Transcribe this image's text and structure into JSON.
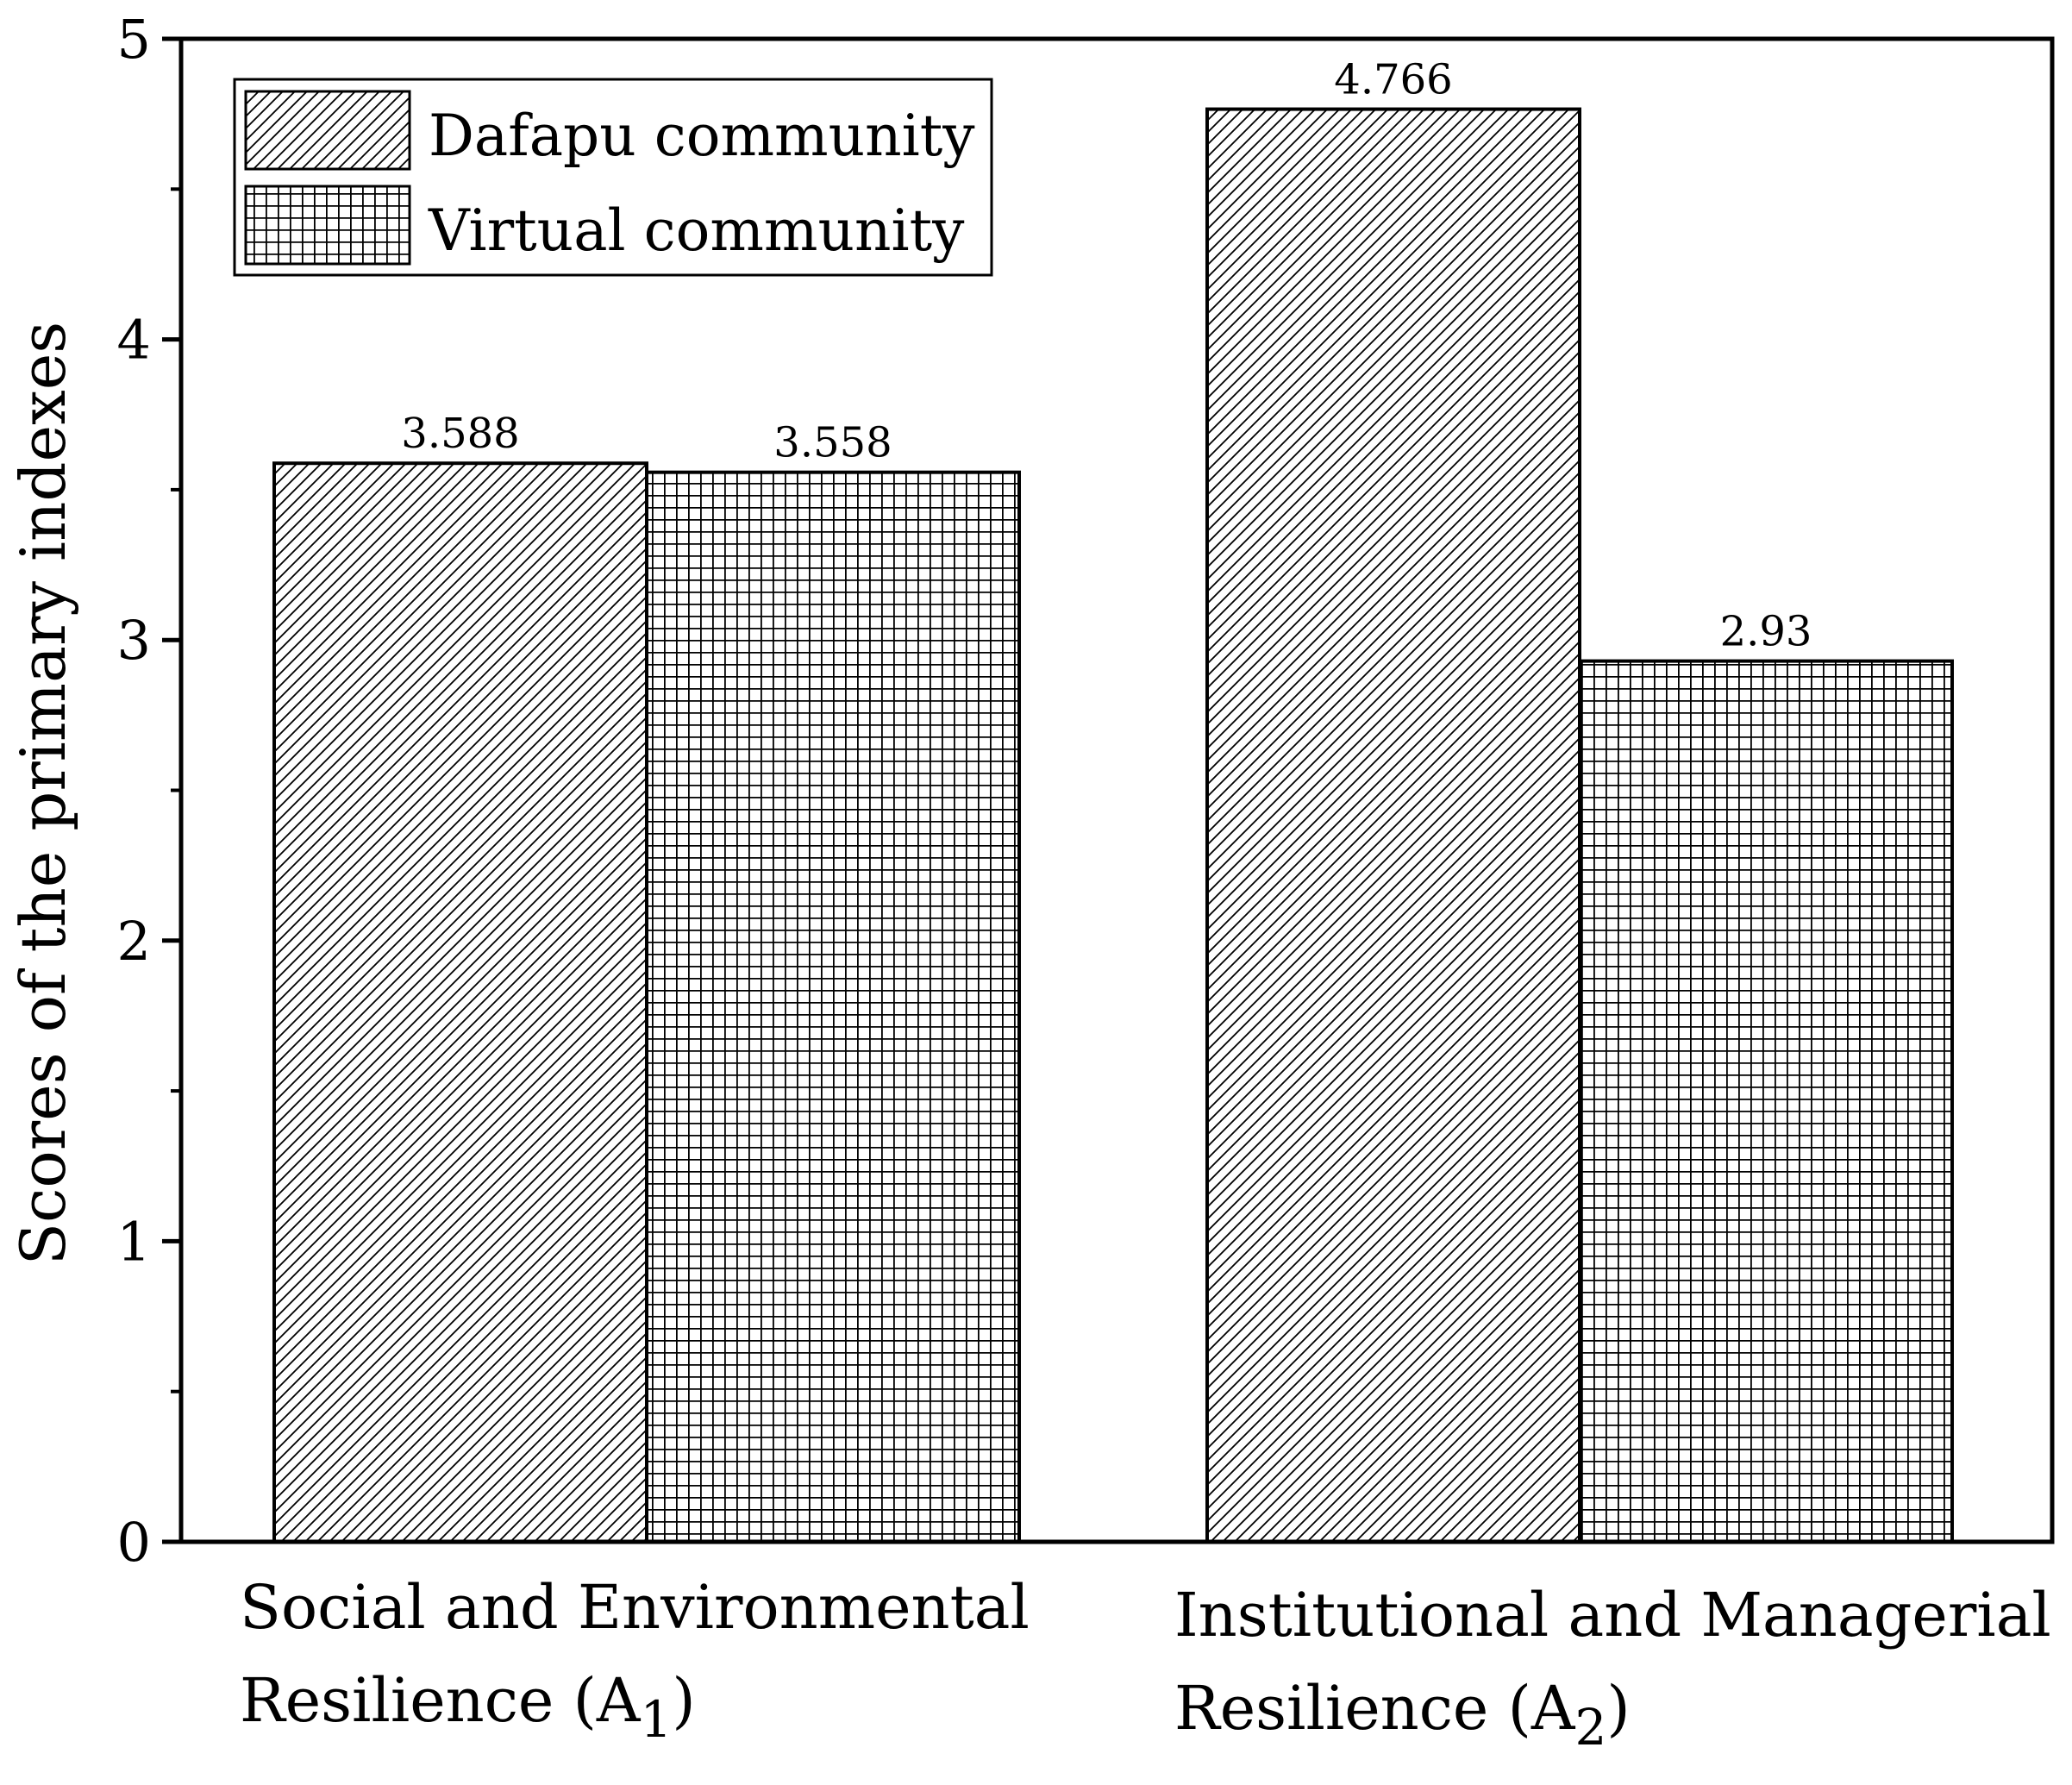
{
  "chart_data": {
    "type": "bar",
    "ylabel": "Scores of the primary indexes",
    "ylim": [
      0,
      5
    ],
    "yticks": [
      "0",
      "1",
      "2",
      "3",
      "4",
      "5"
    ],
    "yminor_step": 0.5,
    "grid": false,
    "legend_position": "top-left",
    "categories": [
      {
        "line1": "Social and Environmental",
        "line2_prefix": "Resilience (A",
        "subscript": "1",
        "line2_suffix": ")"
      },
      {
        "line1": "Institutional and Managerial",
        "line2_prefix": "Resilience (A",
        "subscript": "2",
        "line2_suffix": ")"
      }
    ],
    "series": [
      {
        "name": "Dafapu community",
        "pattern": "diagonal-hatch",
        "values": [
          3.588,
          4.766
        ],
        "labels": [
          "3.588",
          "4.766"
        ]
      },
      {
        "name": "Virtual community",
        "pattern": "grid-crosshatch",
        "values": [
          3.558,
          2.93
        ],
        "labels": [
          "3.558",
          "2.93"
        ]
      }
    ],
    "colors": {
      "ink": "#000000",
      "fill": "#ffffff"
    }
  }
}
